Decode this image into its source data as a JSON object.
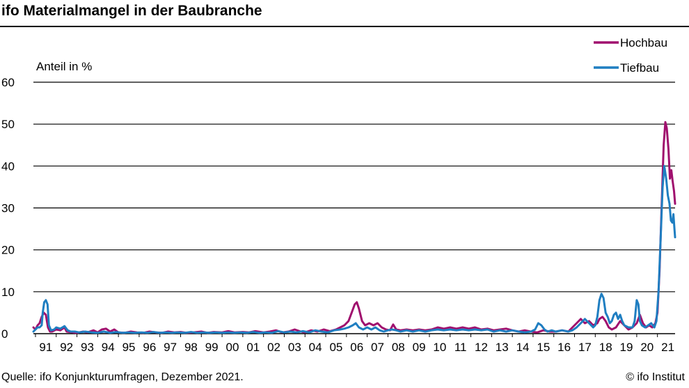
{
  "title": "ifo Materialmangel in der Baubranche",
  "source": "Quelle: ifo Konjunkturumfragen, Dezember 2021.",
  "copyright": "© ifo Institut",
  "colors": {
    "hochbau": "#A0106E",
    "tiefbau": "#1F7EC1",
    "grid": "#000000"
  },
  "chart_data": {
    "type": "line",
    "ylabel": "Anteil in %",
    "ylim": [
      0,
      60
    ],
    "yticks": [
      0,
      10,
      20,
      30,
      40,
      50,
      60
    ],
    "xlim": [
      1990.9,
      2021.85
    ],
    "xtick_labels": [
      "91",
      "92",
      "93",
      "94",
      "95",
      "96",
      "97",
      "98",
      "99",
      "00",
      "01",
      "02",
      "03",
      "04",
      "05",
      "06",
      "07",
      "08",
      "09",
      "10",
      "11",
      "12",
      "13",
      "14",
      "15",
      "16",
      "17",
      "18",
      "19",
      "20",
      "21"
    ],
    "grid": "horizontal",
    "legend": {
      "position": "top-right",
      "entries": [
        "Hochbau",
        "Tiefbau"
      ]
    },
    "series": [
      {
        "name": "Hochbau",
        "color": "#A0106E",
        "points": [
          [
            1990.9,
            1.5
          ],
          [
            1991.0,
            1.0
          ],
          [
            1991.1,
            2.0
          ],
          [
            1991.2,
            2.5
          ],
          [
            1991.3,
            4.0
          ],
          [
            1991.4,
            5.0
          ],
          [
            1991.5,
            4.5
          ],
          [
            1991.6,
            1.5
          ],
          [
            1991.7,
            0.5
          ],
          [
            1991.8,
            0.5
          ],
          [
            1992.0,
            1.0
          ],
          [
            1992.2,
            0.8
          ],
          [
            1992.4,
            1.5
          ],
          [
            1992.5,
            0.5
          ],
          [
            1992.8,
            0.3
          ],
          [
            1993.0,
            0.2
          ],
          [
            1993.3,
            0.5
          ],
          [
            1993.5,
            0.3
          ],
          [
            1993.8,
            0.8
          ],
          [
            1994.0,
            0.3
          ],
          [
            1994.2,
            1.0
          ],
          [
            1994.4,
            1.2
          ],
          [
            1994.6,
            0.5
          ],
          [
            1994.8,
            1.0
          ],
          [
            1995.0,
            0.3
          ],
          [
            1995.3,
            0.2
          ],
          [
            1995.6,
            0.5
          ],
          [
            1995.9,
            0.3
          ],
          [
            1996.2,
            0.2
          ],
          [
            1996.5,
            0.5
          ],
          [
            1996.8,
            0.3
          ],
          [
            1997.1,
            0.2
          ],
          [
            1997.4,
            0.5
          ],
          [
            1997.7,
            0.3
          ],
          [
            1998.0,
            0.4
          ],
          [
            1998.3,
            0.2
          ],
          [
            1998.6,
            0.3
          ],
          [
            1999.0,
            0.5
          ],
          [
            1999.3,
            0.2
          ],
          [
            1999.6,
            0.4
          ],
          [
            2000.0,
            0.3
          ],
          [
            2000.3,
            0.6
          ],
          [
            2000.6,
            0.3
          ],
          [
            2001.0,
            0.4
          ],
          [
            2001.3,
            0.3
          ],
          [
            2001.6,
            0.6
          ],
          [
            2002.0,
            0.3
          ],
          [
            2002.3,
            0.5
          ],
          [
            2002.6,
            0.8
          ],
          [
            2002.9,
            0.3
          ],
          [
            2003.2,
            0.5
          ],
          [
            2003.5,
            1.0
          ],
          [
            2003.8,
            0.5
          ],
          [
            2004.0,
            0.3
          ],
          [
            2004.3,
            0.8
          ],
          [
            2004.6,
            0.5
          ],
          [
            2004.9,
            1.0
          ],
          [
            2005.2,
            0.6
          ],
          [
            2005.5,
            1.0
          ],
          [
            2005.7,
            1.5
          ],
          [
            2005.9,
            2.0
          ],
          [
            2006.1,
            3.0
          ],
          [
            2006.25,
            5.0
          ],
          [
            2006.4,
            7.0
          ],
          [
            2006.5,
            7.5
          ],
          [
            2006.6,
            6.0
          ],
          [
            2006.75,
            3.0
          ],
          [
            2006.9,
            2.0
          ],
          [
            2007.1,
            2.5
          ],
          [
            2007.3,
            2.0
          ],
          [
            2007.5,
            2.5
          ],
          [
            2007.7,
            1.5
          ],
          [
            2007.9,
            1.0
          ],
          [
            2008.1,
            0.8
          ],
          [
            2008.25,
            2.2
          ],
          [
            2008.4,
            1.0
          ],
          [
            2008.6,
            0.8
          ],
          [
            2008.9,
            1.0
          ],
          [
            2009.2,
            0.8
          ],
          [
            2009.5,
            1.0
          ],
          [
            2009.8,
            0.8
          ],
          [
            2010.1,
            1.0
          ],
          [
            2010.4,
            1.5
          ],
          [
            2010.7,
            1.2
          ],
          [
            2011.0,
            1.5
          ],
          [
            2011.3,
            1.2
          ],
          [
            2011.6,
            1.5
          ],
          [
            2011.9,
            1.2
          ],
          [
            2012.2,
            1.5
          ],
          [
            2012.5,
            1.0
          ],
          [
            2012.8,
            1.2
          ],
          [
            2013.1,
            0.8
          ],
          [
            2013.4,
            1.0
          ],
          [
            2013.7,
            1.2
          ],
          [
            2014.0,
            0.8
          ],
          [
            2014.3,
            0.5
          ],
          [
            2014.6,
            0.8
          ],
          [
            2014.9,
            0.5
          ],
          [
            2015.2,
            0.3
          ],
          [
            2015.5,
            0.8
          ],
          [
            2015.8,
            0.5
          ],
          [
            2016.1,
            0.5
          ],
          [
            2016.4,
            0.8
          ],
          [
            2016.7,
            0.5
          ],
          [
            2016.9,
            1.5
          ],
          [
            2017.1,
            2.5
          ],
          [
            2017.3,
            3.5
          ],
          [
            2017.5,
            2.5
          ],
          [
            2017.7,
            3.0
          ],
          [
            2017.9,
            2.0
          ],
          [
            2018.1,
            2.5
          ],
          [
            2018.2,
            3.5
          ],
          [
            2018.35,
            4.0
          ],
          [
            2018.5,
            3.0
          ],
          [
            2018.65,
            1.5
          ],
          [
            2018.8,
            1.0
          ],
          [
            2019.0,
            1.5
          ],
          [
            2019.2,
            3.0
          ],
          [
            2019.4,
            2.0
          ],
          [
            2019.6,
            1.0
          ],
          [
            2019.8,
            1.5
          ],
          [
            2020.0,
            2.5
          ],
          [
            2020.15,
            4.5
          ],
          [
            2020.3,
            2.5
          ],
          [
            2020.45,
            1.5
          ],
          [
            2020.6,
            2.0
          ],
          [
            2020.75,
            1.5
          ],
          [
            2020.9,
            2.5
          ],
          [
            2021.0,
            5.0
          ],
          [
            2021.1,
            15.0
          ],
          [
            2021.2,
            30.0
          ],
          [
            2021.3,
            45.0
          ],
          [
            2021.38,
            50.5
          ],
          [
            2021.45,
            49.0
          ],
          [
            2021.53,
            44.0
          ],
          [
            2021.6,
            37.0
          ],
          [
            2021.67,
            39.0
          ],
          [
            2021.73,
            36.5
          ],
          [
            2021.8,
            34.0
          ],
          [
            2021.85,
            31.0
          ]
        ]
      },
      {
        "name": "Tiefbau",
        "color": "#1F7EC1",
        "points": [
          [
            1990.9,
            0.5
          ],
          [
            1991.0,
            1.0
          ],
          [
            1991.1,
            1.5
          ],
          [
            1991.2,
            1.5
          ],
          [
            1991.3,
            2.0
          ],
          [
            1991.35,
            5.0
          ],
          [
            1991.42,
            7.5
          ],
          [
            1991.5,
            8.0
          ],
          [
            1991.58,
            7.0
          ],
          [
            1991.65,
            2.0
          ],
          [
            1991.75,
            0.8
          ],
          [
            1991.9,
            1.0
          ],
          [
            1992.0,
            1.5
          ],
          [
            1992.2,
            1.2
          ],
          [
            1992.4,
            1.8
          ],
          [
            1992.55,
            0.8
          ],
          [
            1992.7,
            0.5
          ],
          [
            1992.9,
            0.5
          ],
          [
            1993.1,
            0.3
          ],
          [
            1993.4,
            0.5
          ],
          [
            1993.7,
            0.3
          ],
          [
            1994.0,
            0.2
          ],
          [
            1994.3,
            0.5
          ],
          [
            1994.6,
            0.2
          ],
          [
            1994.9,
            0.4
          ],
          [
            1995.2,
            0.2
          ],
          [
            1995.5,
            0.3
          ],
          [
            1995.8,
            0.2
          ],
          [
            1996.1,
            0.3
          ],
          [
            1996.4,
            0.2
          ],
          [
            1996.7,
            0.4
          ],
          [
            1997.0,
            0.2
          ],
          [
            1997.3,
            0.3
          ],
          [
            1997.6,
            0.2
          ],
          [
            1997.9,
            0.3
          ],
          [
            1998.2,
            0.2
          ],
          [
            1998.5,
            0.4
          ],
          [
            1998.8,
            0.2
          ],
          [
            1999.1,
            0.3
          ],
          [
            1999.4,
            0.2
          ],
          [
            1999.7,
            0.3
          ],
          [
            2000.0,
            0.2
          ],
          [
            2000.3,
            0.3
          ],
          [
            2000.6,
            0.2
          ],
          [
            2000.9,
            0.3
          ],
          [
            2001.2,
            0.2
          ],
          [
            2001.5,
            0.4
          ],
          [
            2001.8,
            0.2
          ],
          [
            2002.1,
            0.3
          ],
          [
            2002.4,
            0.2
          ],
          [
            2002.7,
            0.6
          ],
          [
            2003.0,
            0.3
          ],
          [
            2003.3,
            0.5
          ],
          [
            2003.6,
            0.3
          ],
          [
            2003.9,
            0.6
          ],
          [
            2004.2,
            0.3
          ],
          [
            2004.5,
            0.8
          ],
          [
            2004.8,
            0.5
          ],
          [
            2005.1,
            0.3
          ],
          [
            2005.4,
            0.8
          ],
          [
            2005.7,
            1.0
          ],
          [
            2005.9,
            1.2
          ],
          [
            2006.1,
            1.5
          ],
          [
            2006.3,
            2.0
          ],
          [
            2006.45,
            2.5
          ],
          [
            2006.6,
            1.5
          ],
          [
            2006.8,
            1.0
          ],
          [
            2007.0,
            1.5
          ],
          [
            2007.2,
            1.0
          ],
          [
            2007.4,
            1.5
          ],
          [
            2007.6,
            0.8
          ],
          [
            2007.8,
            0.5
          ],
          [
            2008.0,
            0.8
          ],
          [
            2008.2,
            1.0
          ],
          [
            2008.4,
            0.8
          ],
          [
            2008.6,
            0.5
          ],
          [
            2008.9,
            0.8
          ],
          [
            2009.2,
            0.5
          ],
          [
            2009.5,
            0.8
          ],
          [
            2009.8,
            0.5
          ],
          [
            2010.1,
            0.8
          ],
          [
            2010.4,
            1.0
          ],
          [
            2010.7,
            0.8
          ],
          [
            2011.0,
            1.0
          ],
          [
            2011.3,
            0.8
          ],
          [
            2011.6,
            1.0
          ],
          [
            2011.9,
            0.8
          ],
          [
            2012.2,
            1.0
          ],
          [
            2012.5,
            0.8
          ],
          [
            2012.8,
            1.0
          ],
          [
            2013.1,
            0.5
          ],
          [
            2013.4,
            0.8
          ],
          [
            2013.7,
            0.5
          ],
          [
            2014.0,
            0.8
          ],
          [
            2014.3,
            0.5
          ],
          [
            2014.6,
            0.3
          ],
          [
            2014.9,
            0.5
          ],
          [
            2015.1,
            1.0
          ],
          [
            2015.25,
            2.5
          ],
          [
            2015.4,
            2.0
          ],
          [
            2015.55,
            1.0
          ],
          [
            2015.7,
            0.5
          ],
          [
            2015.9,
            0.8
          ],
          [
            2016.1,
            0.5
          ],
          [
            2016.4,
            0.8
          ],
          [
            2016.7,
            0.5
          ],
          [
            2016.9,
            0.8
          ],
          [
            2017.1,
            1.5
          ],
          [
            2017.3,
            2.5
          ],
          [
            2017.5,
            3.5
          ],
          [
            2017.7,
            2.5
          ],
          [
            2017.9,
            1.5
          ],
          [
            2018.0,
            2.0
          ],
          [
            2018.1,
            4.0
          ],
          [
            2018.2,
            8.0
          ],
          [
            2018.3,
            9.5
          ],
          [
            2018.4,
            8.5
          ],
          [
            2018.5,
            5.0
          ],
          [
            2018.6,
            4.0
          ],
          [
            2018.7,
            2.5
          ],
          [
            2018.8,
            3.0
          ],
          [
            2018.9,
            4.5
          ],
          [
            2019.0,
            5.0
          ],
          [
            2019.1,
            3.5
          ],
          [
            2019.2,
            4.5
          ],
          [
            2019.3,
            3.0
          ],
          [
            2019.4,
            2.0
          ],
          [
            2019.6,
            1.5
          ],
          [
            2019.8,
            1.5
          ],
          [
            2019.9,
            3.0
          ],
          [
            2020.0,
            8.0
          ],
          [
            2020.08,
            7.0
          ],
          [
            2020.15,
            3.0
          ],
          [
            2020.25,
            2.0
          ],
          [
            2020.4,
            1.5
          ],
          [
            2020.55,
            2.0
          ],
          [
            2020.7,
            2.5
          ],
          [
            2020.85,
            1.5
          ],
          [
            2020.95,
            3.0
          ],
          [
            2021.05,
            10.0
          ],
          [
            2021.15,
            22.0
          ],
          [
            2021.25,
            35.0
          ],
          [
            2021.33,
            40.0
          ],
          [
            2021.42,
            37.0
          ],
          [
            2021.5,
            33.0
          ],
          [
            2021.58,
            31.0
          ],
          [
            2021.65,
            27.0
          ],
          [
            2021.72,
            26.5
          ],
          [
            2021.77,
            28.5
          ],
          [
            2021.82,
            25.0
          ],
          [
            2021.85,
            23.0
          ]
        ]
      }
    ]
  }
}
